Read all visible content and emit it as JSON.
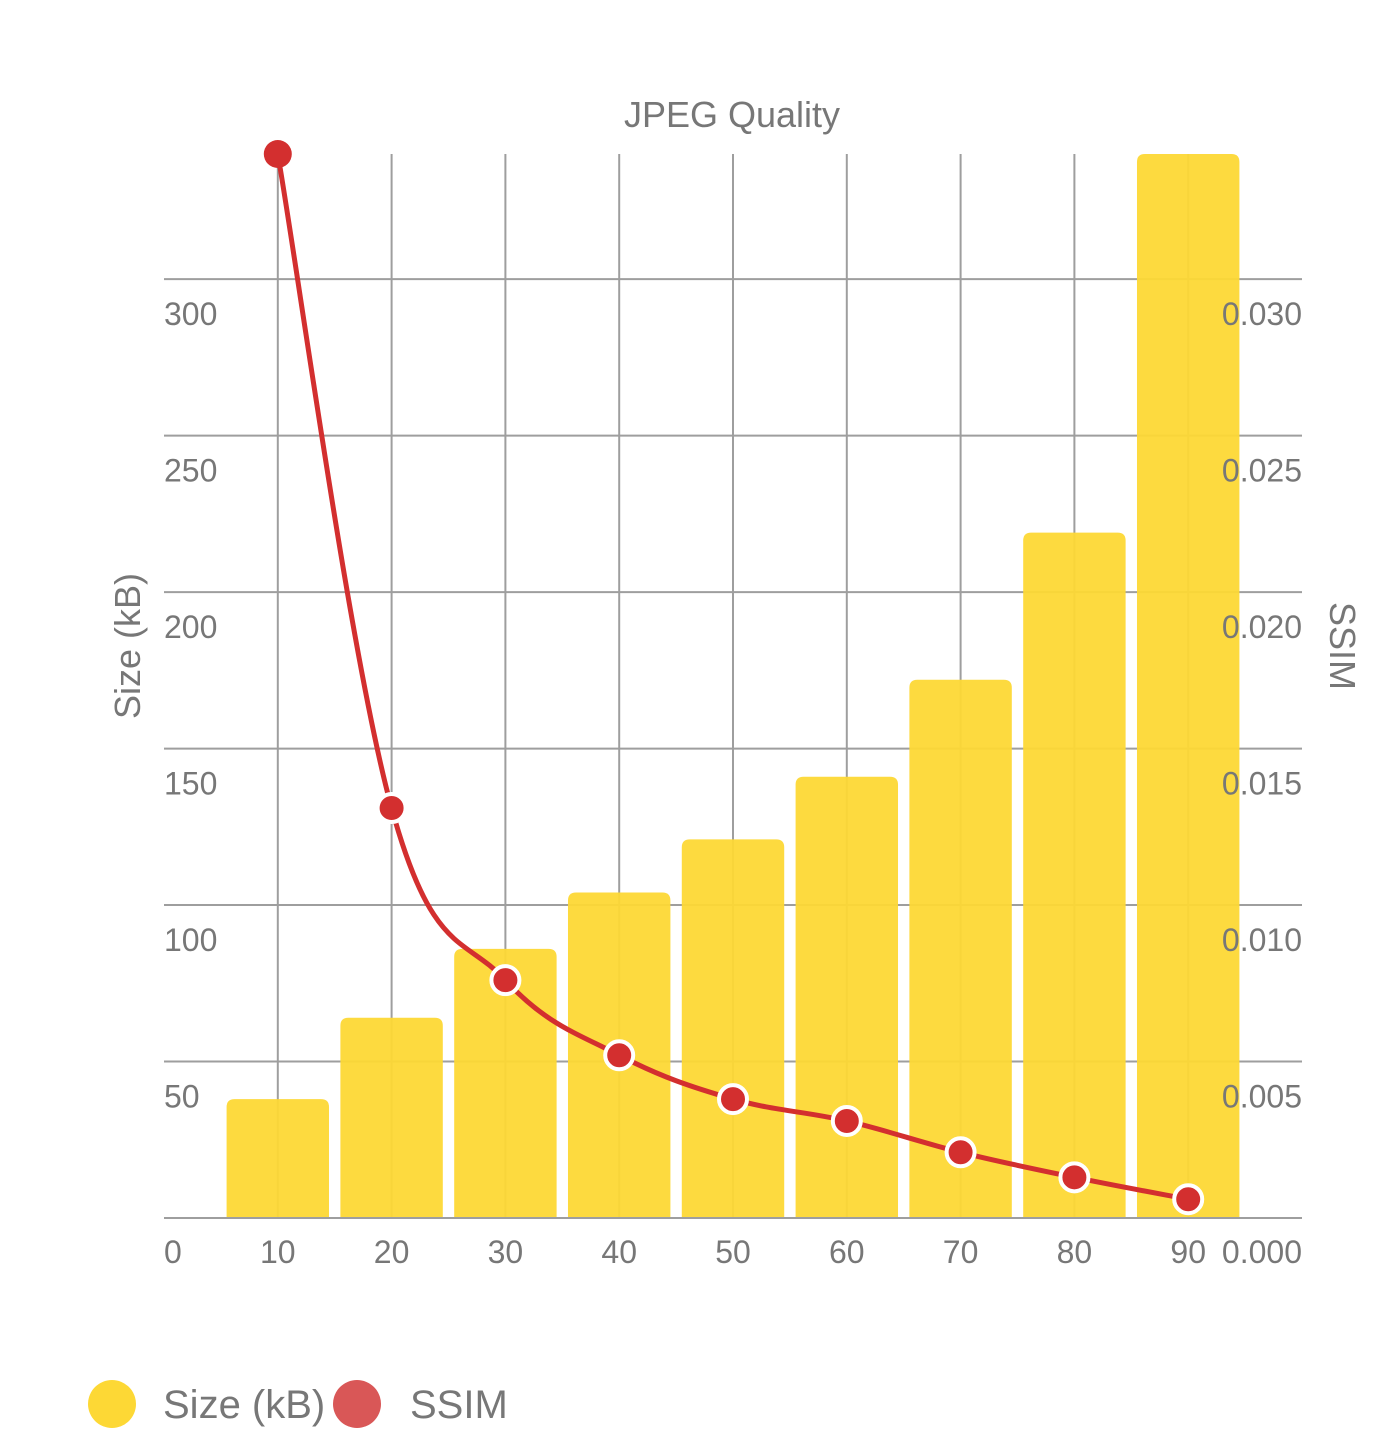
{
  "chart_data": {
    "type": "bar",
    "title": "",
    "xlabel": "JPEG Quality",
    "ylabel": "Size (kB)",
    "y2label": "SSIM",
    "xlim": [
      0,
      100
    ],
    "ylim": [
      0,
      340
    ],
    "y2lim": [
      0,
      0.034
    ],
    "x_ticks": [
      0,
      10,
      20,
      30,
      40,
      50,
      60,
      70,
      80,
      90
    ],
    "y_ticks": [
      50,
      100,
      150,
      200,
      250,
      300
    ],
    "y2_ticks": [
      "0.005",
      "0.010",
      "0.015",
      "0.020",
      "0.025",
      "0.030"
    ],
    "y_zero_label": "0",
    "y2_zero_label": "0.000",
    "categories": [
      10,
      20,
      30,
      40,
      50,
      60,
      70,
      80,
      90
    ],
    "series": [
      {
        "name": "Size (kB)",
        "type": "bar",
        "axis": "left",
        "color": "#fdd835",
        "values": [
          38,
          64,
          86,
          104,
          121,
          141,
          172,
          219,
          342
        ]
      },
      {
        "name": "SSIM",
        "type": "line",
        "axis": "right",
        "color": "#d32f2f",
        "values": [
          0.0342,
          0.0131,
          0.0076,
          0.0052,
          0.0038,
          0.0031,
          0.0021,
          0.0013,
          0.0006
        ]
      }
    ],
    "grid": true,
    "legend_position": "bottom-left",
    "legend": [
      {
        "label": "Size (kB)",
        "color": "#fdd835"
      },
      {
        "label": "SSIM",
        "color": "#d95757"
      }
    ]
  }
}
